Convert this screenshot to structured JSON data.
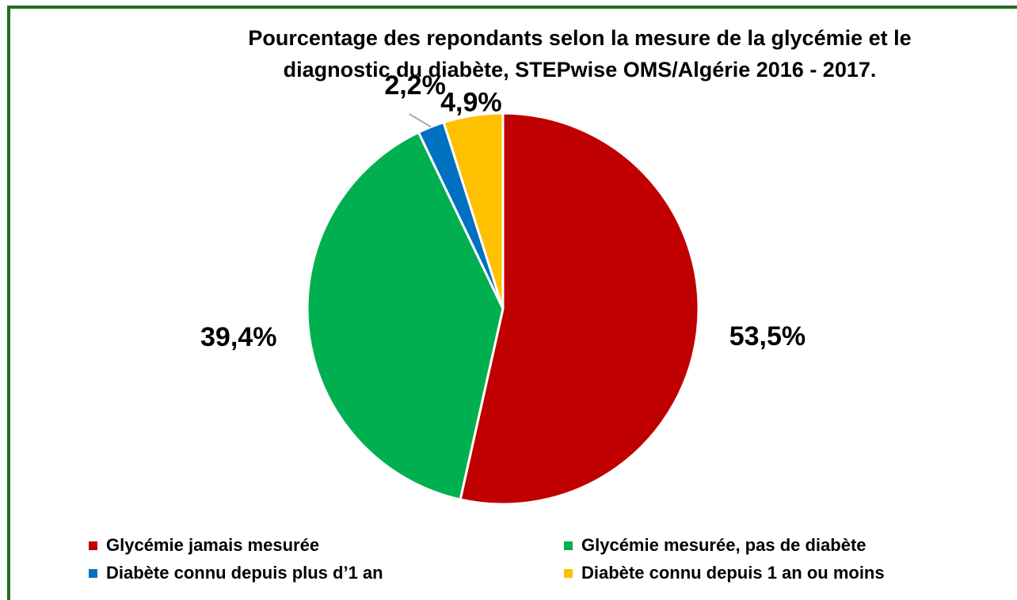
{
  "chart_data": {
    "type": "pie",
    "title": [
      "Pourcentage des repondants selon  la mesure de la glycémie et le",
      "diagnostic du diabète, STEPwise OMS/Algérie  2016 - 2017."
    ],
    "categories": [
      "Glycémie jamais mesurée",
      "Glycémie mesurée, pas de diabète",
      "Diabète connu depuis plus d’1 an",
      "Diabète connu depuis 1 an ou moins"
    ],
    "values": [
      53.5,
      39.4,
      2.2,
      4.9
    ],
    "value_labels": [
      "53,5%",
      "39,4%",
      "2,2%",
      "4,9%"
    ],
    "colors": [
      "#c00000",
      "#00b050",
      "#0070c0",
      "#ffc000"
    ]
  }
}
